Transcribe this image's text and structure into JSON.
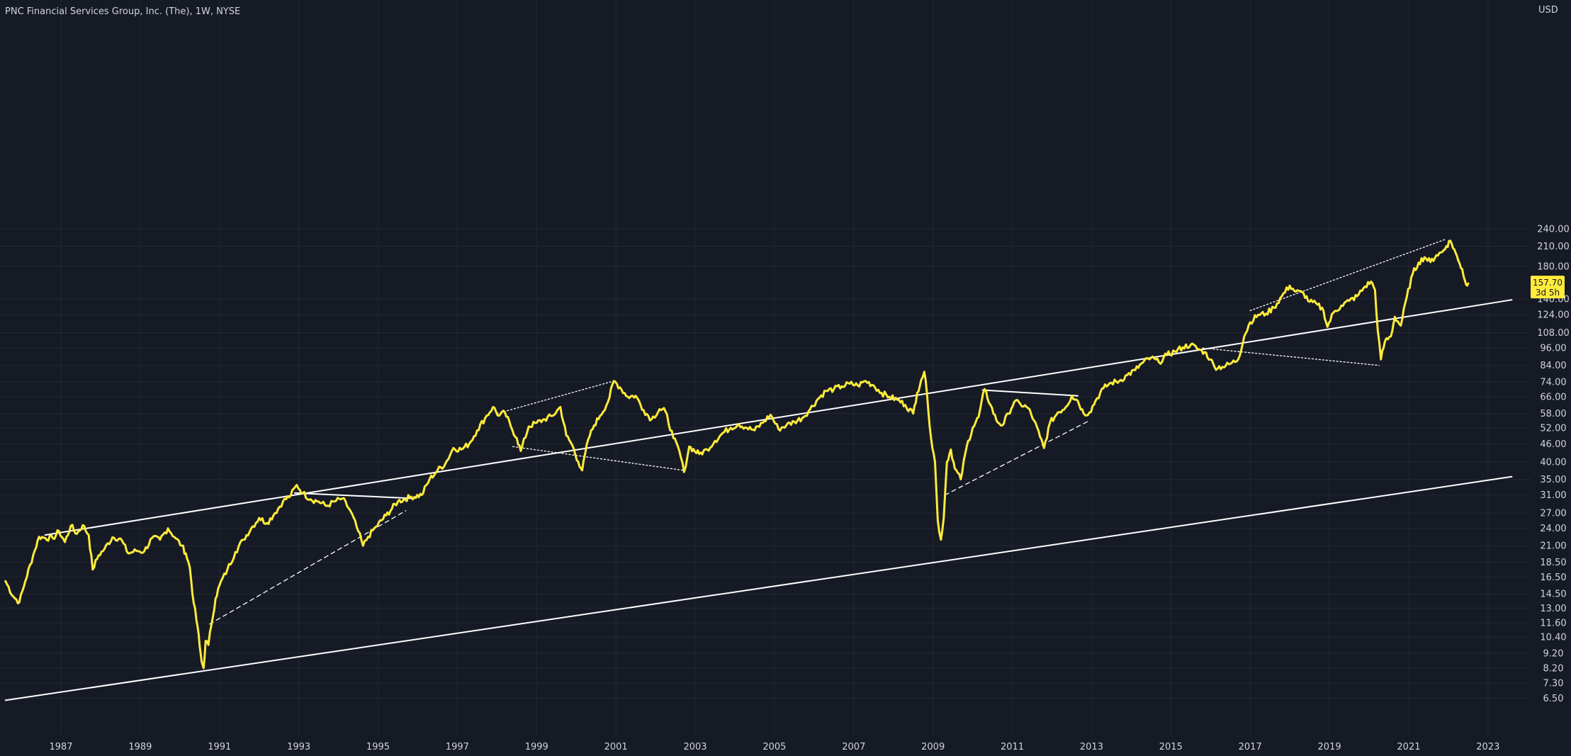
{
  "header": {
    "title": "PNC Financial Services Group, Inc. (The), 1W, NYSE"
  },
  "colors": {
    "background": "#161a25",
    "grid": "#232733",
    "price_line": "#ffeb3b",
    "trend_line": "#ffffff",
    "text": "#d1d4dc",
    "badge_bg": "#ffeb3b",
    "badge_text": "#131722"
  },
  "chart_data": {
    "type": "line",
    "symbol": "PNC",
    "interval": "1W",
    "exchange": "NYSE",
    "y_scale": "log",
    "grid": true,
    "currency_label": "USD",
    "y_ticks": [
      "6.50",
      "7.30",
      "8.20",
      "9.20",
      "10.40",
      "11.60",
      "13.00",
      "14.50",
      "16.50",
      "18.50",
      "21.00",
      "24.00",
      "27.00",
      "31.00",
      "35.00",
      "40.00",
      "46.00",
      "52.00",
      "58.00",
      "66.00",
      "74.00",
      "84.00",
      "96.00",
      "108.00",
      "124.00",
      "140.00",
      "180.00",
      "210.00",
      "240.00"
    ],
    "x_ticks": [
      "1987",
      "1989",
      "1991",
      "1993",
      "1995",
      "1997",
      "1999",
      "2001",
      "2003",
      "2005",
      "2007",
      "2009",
      "2011",
      "2013",
      "2015",
      "2017",
      "2019",
      "2021",
      "2023"
    ],
    "last_price": "157.70",
    "countdown": "3d 5h",
    "series": [
      {
        "values": [
          [
            1985.6,
            16.0
          ],
          [
            1985.8,
            14.2
          ],
          [
            1985.95,
            13.6
          ],
          [
            1986.1,
            16.0
          ],
          [
            1986.3,
            19.5
          ],
          [
            1986.45,
            22.5
          ],
          [
            1986.6,
            22.3
          ],
          [
            1986.8,
            22.2
          ],
          [
            1986.95,
            23.5
          ],
          [
            1987.1,
            21.6
          ],
          [
            1987.25,
            24.5
          ],
          [
            1987.4,
            23.0
          ],
          [
            1987.55,
            24.6
          ],
          [
            1987.7,
            22.8
          ],
          [
            1987.8,
            17.5
          ],
          [
            1987.95,
            19.5
          ],
          [
            1988.1,
            20.5
          ],
          [
            1988.3,
            22.4
          ],
          [
            1988.5,
            22.2
          ],
          [
            1988.7,
            19.8
          ],
          [
            1988.9,
            20.2
          ],
          [
            1989.1,
            20.1
          ],
          [
            1989.3,
            22.3
          ],
          [
            1989.5,
            22.0
          ],
          [
            1989.7,
            24.0
          ],
          [
            1989.9,
            22.2
          ],
          [
            1990.05,
            21.0
          ],
          [
            1990.15,
            19.8
          ],
          [
            1990.25,
            17.8
          ],
          [
            1990.35,
            13.5
          ],
          [
            1990.45,
            11.2
          ],
          [
            1990.5,
            9.7
          ],
          [
            1990.55,
            8.6
          ],
          [
            1990.6,
            8.2
          ],
          [
            1990.65,
            10.1
          ],
          [
            1990.72,
            9.8
          ],
          [
            1990.8,
            11.5
          ],
          [
            1990.9,
            14.0
          ],
          [
            1991.0,
            15.5
          ],
          [
            1991.2,
            17.5
          ],
          [
            1991.4,
            20.0
          ],
          [
            1991.6,
            22.0
          ],
          [
            1991.8,
            24.0
          ],
          [
            1992.0,
            26.0
          ],
          [
            1992.2,
            25.0
          ],
          [
            1992.4,
            27.0
          ],
          [
            1992.6,
            29.5
          ],
          [
            1992.8,
            31.0
          ],
          [
            1992.95,
            33.5
          ],
          [
            1993.1,
            31.5
          ],
          [
            1993.3,
            30.0
          ],
          [
            1993.5,
            29.5
          ],
          [
            1993.7,
            28.5
          ],
          [
            1993.9,
            29.5
          ],
          [
            1994.1,
            30.2
          ],
          [
            1994.3,
            27.5
          ],
          [
            1994.5,
            23.5
          ],
          [
            1994.62,
            21.0
          ],
          [
            1994.75,
            22.5
          ],
          [
            1994.95,
            24.3
          ],
          [
            1995.2,
            26.5
          ],
          [
            1995.5,
            29.5
          ],
          [
            1995.8,
            30.5
          ],
          [
            1996.1,
            31.0
          ],
          [
            1996.3,
            35.0
          ],
          [
            1996.5,
            37.5
          ],
          [
            1996.7,
            39.5
          ],
          [
            1996.9,
            44.5
          ],
          [
            1997.1,
            44.0
          ],
          [
            1997.3,
            46.0
          ],
          [
            1997.5,
            51.0
          ],
          [
            1997.7,
            56.0
          ],
          [
            1997.9,
            61.0
          ],
          [
            1998.05,
            57.0
          ],
          [
            1998.2,
            58.5
          ],
          [
            1998.35,
            52.5
          ],
          [
            1998.5,
            48.0
          ],
          [
            1998.6,
            43.5
          ],
          [
            1998.8,
            52.5
          ],
          [
            1999.0,
            54.0
          ],
          [
            1999.2,
            55.5
          ],
          [
            1999.4,
            57.0
          ],
          [
            1999.6,
            61.0
          ],
          [
            1999.75,
            49.0
          ],
          [
            1999.9,
            45.5
          ],
          [
            2000.05,
            40.0
          ],
          [
            2000.15,
            37.5
          ],
          [
            2000.3,
            47.5
          ],
          [
            2000.45,
            53.0
          ],
          [
            2000.6,
            57.0
          ],
          [
            2000.8,
            63.5
          ],
          [
            2000.95,
            74.5
          ],
          [
            2001.1,
            71.0
          ],
          [
            2001.3,
            66.0
          ],
          [
            2001.5,
            66.5
          ],
          [
            2001.7,
            59.5
          ],
          [
            2001.9,
            55.5
          ],
          [
            2002.1,
            60.0
          ],
          [
            2002.25,
            59.0
          ],
          [
            2002.45,
            48.0
          ],
          [
            2002.6,
            43.5
          ],
          [
            2002.72,
            37.0
          ],
          [
            2002.85,
            45.0
          ],
          [
            2003.1,
            42.5
          ],
          [
            2003.3,
            44.0
          ],
          [
            2003.5,
            47.0
          ],
          [
            2003.7,
            50.0
          ],
          [
            2003.9,
            52.0
          ],
          [
            2004.1,
            53.5
          ],
          [
            2004.3,
            52.0
          ],
          [
            2004.5,
            51.0
          ],
          [
            2004.7,
            54.0
          ],
          [
            2004.9,
            57.5
          ],
          [
            2005.1,
            51.5
          ],
          [
            2005.3,
            53.0
          ],
          [
            2005.5,
            54.5
          ],
          [
            2005.7,
            56.0
          ],
          [
            2005.9,
            60.0
          ],
          [
            2006.1,
            65.0
          ],
          [
            2006.3,
            69.0
          ],
          [
            2006.5,
            70.0
          ],
          [
            2006.7,
            71.5
          ],
          [
            2006.9,
            73.0
          ],
          [
            2007.1,
            72.0
          ],
          [
            2007.3,
            74.5
          ],
          [
            2007.5,
            72.0
          ],
          [
            2007.7,
            68.0
          ],
          [
            2007.9,
            66.0
          ],
          [
            2008.1,
            64.5
          ],
          [
            2008.3,
            62.0
          ],
          [
            2008.5,
            58.0
          ],
          [
            2008.6,
            68.0
          ],
          [
            2008.7,
            75.0
          ],
          [
            2008.78,
            80.0
          ],
          [
            2008.85,
            67.0
          ],
          [
            2008.95,
            48.0
          ],
          [
            2009.05,
            40.0
          ],
          [
            2009.12,
            25.5
          ],
          [
            2009.2,
            22.0
          ],
          [
            2009.27,
            26.0
          ],
          [
            2009.35,
            40.0
          ],
          [
            2009.45,
            44.0
          ],
          [
            2009.55,
            38.0
          ],
          [
            2009.7,
            35.0
          ],
          [
            2009.85,
            45.0
          ],
          [
            2010.0,
            52.0
          ],
          [
            2010.15,
            56.5
          ],
          [
            2010.3,
            70.0
          ],
          [
            2010.45,
            62.0
          ],
          [
            2010.6,
            55.0
          ],
          [
            2010.75,
            53.0
          ],
          [
            2010.9,
            58.0
          ],
          [
            2011.05,
            63.5
          ],
          [
            2011.2,
            62.5
          ],
          [
            2011.4,
            60.5
          ],
          [
            2011.55,
            55.0
          ],
          [
            2011.7,
            48.5
          ],
          [
            2011.8,
            44.5
          ],
          [
            2011.95,
            54.0
          ],
          [
            2012.15,
            58.5
          ],
          [
            2012.35,
            61.0
          ],
          [
            2012.5,
            66.5
          ],
          [
            2012.65,
            64.0
          ],
          [
            2012.8,
            58.0
          ],
          [
            2012.95,
            58.5
          ],
          [
            2013.1,
            64.0
          ],
          [
            2013.3,
            70.5
          ],
          [
            2013.5,
            73.5
          ],
          [
            2013.7,
            74.5
          ],
          [
            2013.9,
            78.0
          ],
          [
            2014.1,
            81.0
          ],
          [
            2014.3,
            86.0
          ],
          [
            2014.5,
            89.0
          ],
          [
            2014.7,
            86.0
          ],
          [
            2014.9,
            91.0
          ],
          [
            2015.1,
            93.5
          ],
          [
            2015.3,
            96.5
          ],
          [
            2015.5,
            98.5
          ],
          [
            2015.7,
            95.0
          ],
          [
            2015.85,
            93.0
          ],
          [
            2016.0,
            88.0
          ],
          [
            2016.1,
            83.0
          ],
          [
            2016.3,
            83.0
          ],
          [
            2016.5,
            85.0
          ],
          [
            2016.7,
            88.0
          ],
          [
            2016.85,
            105.0
          ],
          [
            2017.0,
            117.0
          ],
          [
            2017.2,
            124.0
          ],
          [
            2017.4,
            125.0
          ],
          [
            2017.6,
            131.0
          ],
          [
            2017.8,
            143.0
          ],
          [
            2018.0,
            155.0
          ],
          [
            2018.15,
            148.0
          ],
          [
            2018.35,
            146.0
          ],
          [
            2018.5,
            137.0
          ],
          [
            2018.7,
            134.0
          ],
          [
            2018.85,
            128.0
          ],
          [
            2018.95,
            113.0
          ],
          [
            2019.1,
            126.0
          ],
          [
            2019.3,
            133.0
          ],
          [
            2019.5,
            138.0
          ],
          [
            2019.7,
            143.0
          ],
          [
            2019.9,
            154.0
          ],
          [
            2020.05,
            160.0
          ],
          [
            2020.15,
            150.0
          ],
          [
            2020.22,
            110.0
          ],
          [
            2020.3,
            88.0
          ],
          [
            2020.4,
            101.0
          ],
          [
            2020.55,
            105.0
          ],
          [
            2020.65,
            122.0
          ],
          [
            2020.8,
            114.0
          ],
          [
            2020.95,
            142.0
          ],
          [
            2021.1,
            170.0
          ],
          [
            2021.25,
            185.0
          ],
          [
            2021.4,
            193.0
          ],
          [
            2021.55,
            186.0
          ],
          [
            2021.7,
            196.0
          ],
          [
            2021.85,
            201.0
          ],
          [
            2021.95,
            210.0
          ],
          [
            2022.05,
            219.0
          ],
          [
            2022.15,
            205.0
          ],
          [
            2022.25,
            188.0
          ],
          [
            2022.35,
            176.0
          ],
          [
            2022.45,
            156.0
          ],
          [
            2022.5,
            157.7
          ]
        ]
      }
    ],
    "trendlines": [
      {
        "style": "solid",
        "points": [
          [
            1985.6,
            6.4
          ],
          [
            2023.6,
            35.7
          ]
        ]
      },
      {
        "style": "solid",
        "points": [
          [
            1986.6,
            22.8
          ],
          [
            2023.6,
            139.0
          ]
        ]
      },
      {
        "style": "solid",
        "points": [
          [
            1992.9,
            31.5
          ],
          [
            1995.9,
            30.2
          ]
        ]
      },
      {
        "style": "solid",
        "points": [
          [
            2010.25,
            69.5
          ],
          [
            2012.65,
            66.5
          ]
        ]
      },
      {
        "style": "dashed",
        "points": [
          [
            1990.75,
            11.5
          ],
          [
            1995.7,
            27.5
          ]
        ]
      },
      {
        "style": "dashed",
        "points": [
          [
            2009.3,
            31.0
          ],
          [
            2012.95,
            55.0
          ]
        ]
      },
      {
        "style": "dotted",
        "points": [
          [
            1998.0,
            58.0
          ],
          [
            2000.95,
            74.5
          ]
        ]
      },
      {
        "style": "dotted",
        "points": [
          [
            1998.4,
            45.0
          ],
          [
            2002.7,
            37.5
          ]
        ]
      },
      {
        "style": "dotted",
        "points": [
          [
            2017.0,
            128.0
          ],
          [
            2021.95,
            222.0
          ]
        ]
      },
      {
        "style": "dotted",
        "points": [
          [
            2015.8,
            96.0
          ],
          [
            2020.25,
            84.0
          ]
        ]
      }
    ]
  }
}
